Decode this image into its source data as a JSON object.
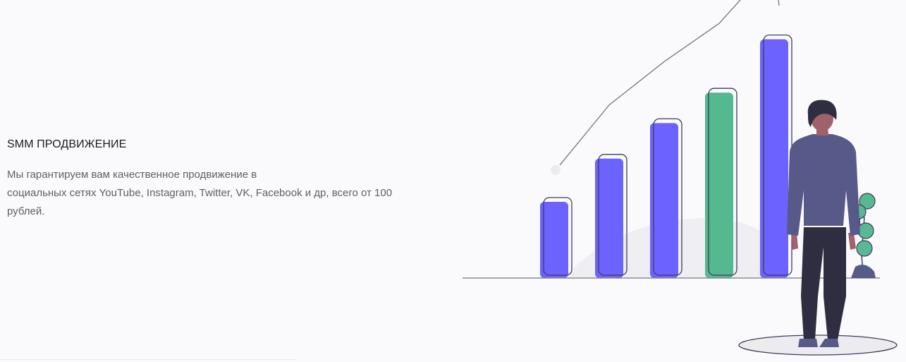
{
  "hero": {
    "title": "SMM ПРОДВИЖЕНИЕ",
    "description_lines": [
      "Мы гарантируем вам качественное продвижение в",
      "социальных сетях YouTube, Instagram, Twitter, VK, Facebook и др, всего от 100",
      "рублей."
    ]
  },
  "illustration": {
    "icon": "growth-chart-illustration",
    "chart_data": {
      "type": "bar",
      "values": [
        3,
        4.7,
        6.1,
        7.3,
        9.4
      ],
      "ylim": [
        0,
        10
      ]
    },
    "colors": {
      "bar_primary": "#6c63ff",
      "bar_accent": "#54b990",
      "outline": "#3f3d56",
      "suit": "#575a89",
      "trousers": "#2f2e41",
      "skin": "#a0616a",
      "plant": "#57b894"
    }
  }
}
